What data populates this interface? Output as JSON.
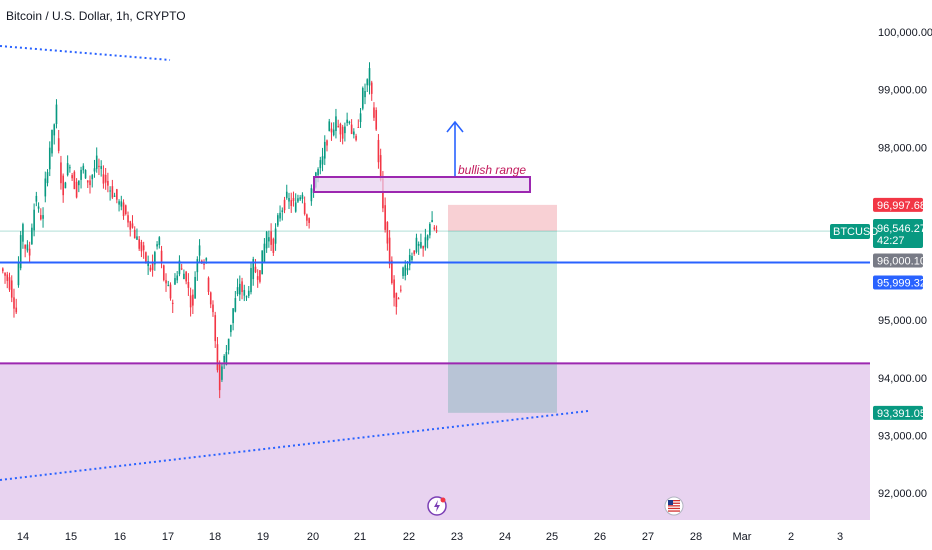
{
  "header": {
    "title": "Bitcoin / U.S. Dollar, 1h, CRYPTO"
  },
  "colors": {
    "up_candle": "#089981",
    "down_candle": "#f23645",
    "blue_line": "#2962ff",
    "purple": "#9c27b0",
    "support_zone": "#e8d3f0",
    "stop_zone": "#f8d0d4",
    "target_zone": "#cdeae3",
    "overlap_zone": "#b8c4d6",
    "last_price_bg": "#089981",
    "red_label_bg": "#f23645",
    "grey_label_bg": "#787b86",
    "blue_label_bg": "#2962ff"
  },
  "icons": [
    "lightning-event-icon",
    "us-flag-event-icon"
  ],
  "annotation": {
    "text": "bullish range"
  },
  "price_labels": {
    "ticker": "BTCUSD",
    "last_price": "96,546.27",
    "countdown": "42:27",
    "red_level": "96,997.68",
    "grey_level": "96,000.10",
    "blue_level": "95,999.32",
    "green_level": "93,391.05"
  },
  "chart_data": {
    "type": "candlestick",
    "title": "Bitcoin / U.S. Dollar, 1h, CRYPTO",
    "y_axis_ticks": [
      "100,000.00",
      "99,000.00",
      "98,000.00",
      "95,000.00",
      "94,000.00",
      "93,000.00",
      "92,000.00"
    ],
    "y_tick_values": [
      100000,
      99000,
      98000,
      95000,
      94000,
      93000,
      92000
    ],
    "x_axis_ticks": [
      "14",
      "15",
      "16",
      "17",
      "18",
      "19",
      "20",
      "21",
      "22",
      "23",
      "24",
      "25",
      "26",
      "27",
      "28",
      "Mar",
      "2",
      "3"
    ],
    "ylim": [
      91600,
      100500
    ],
    "horizontal_lines": [
      {
        "name": "blue",
        "value": 96000
      },
      {
        "name": "purple",
        "value": 94250
      }
    ],
    "ohlc_path": [
      [
        95900,
        95700
      ],
      [
        95800,
        95300
      ],
      [
        95300,
        96400
      ],
      [
        96400,
        96200
      ],
      [
        96200,
        97000
      ],
      [
        97000,
        96800
      ],
      [
        96800,
        97800
      ],
      [
        97800,
        98500
      ],
      [
        98500,
        97300
      ],
      [
        97300,
        97700
      ],
      [
        97700,
        97300
      ],
      [
        97300,
        97600
      ],
      [
        97600,
        97400
      ],
      [
        97400,
        97700
      ],
      [
        97700,
        97500
      ],
      [
        97500,
        97300
      ],
      [
        97300,
        97100
      ],
      [
        97100,
        96900
      ],
      [
        96900,
        96700
      ],
      [
        96700,
        96400
      ],
      [
        96400,
        96100
      ],
      [
        96100,
        95900
      ],
      [
        95900,
        96300
      ],
      [
        96300,
        95700
      ],
      [
        95700,
        95400
      ],
      [
        95400,
        95900
      ],
      [
        95900,
        95800
      ],
      [
        95800,
        95300
      ],
      [
        95300,
        96200
      ],
      [
        96200,
        96000
      ],
      [
        96000,
        95200
      ],
      [
        95200,
        94000
      ],
      [
        94000,
        94400
      ],
      [
        94400,
        95100
      ],
      [
        95100,
        95600
      ],
      [
        95600,
        95400
      ],
      [
        95400,
        95900
      ],
      [
        95900,
        95800
      ],
      [
        95800,
        96500
      ],
      [
        96500,
        96300
      ],
      [
        96300,
        96900
      ],
      [
        96900,
        97100
      ],
      [
        97100,
        97000
      ],
      [
        97000,
        97200
      ],
      [
        97200,
        96800
      ],
      [
        96800,
        97400
      ],
      [
        97400,
        97700
      ],
      [
        97700,
        98200
      ],
      [
        98200,
        98400
      ],
      [
        98400,
        98300
      ],
      [
        98300,
        98500
      ],
      [
        98500,
        98100
      ],
      [
        98100,
        98800
      ],
      [
        98800,
        99200
      ],
      [
        99200,
        98400
      ],
      [
        98400,
        97100
      ],
      [
        97100,
        96100
      ],
      [
        96100,
        95200
      ],
      [
        95200,
        95800
      ],
      [
        95800,
        96100
      ],
      [
        96100,
        96300
      ],
      [
        96300,
        96200
      ],
      [
        96200,
        96700
      ],
      [
        96700,
        96500
      ]
    ]
  }
}
